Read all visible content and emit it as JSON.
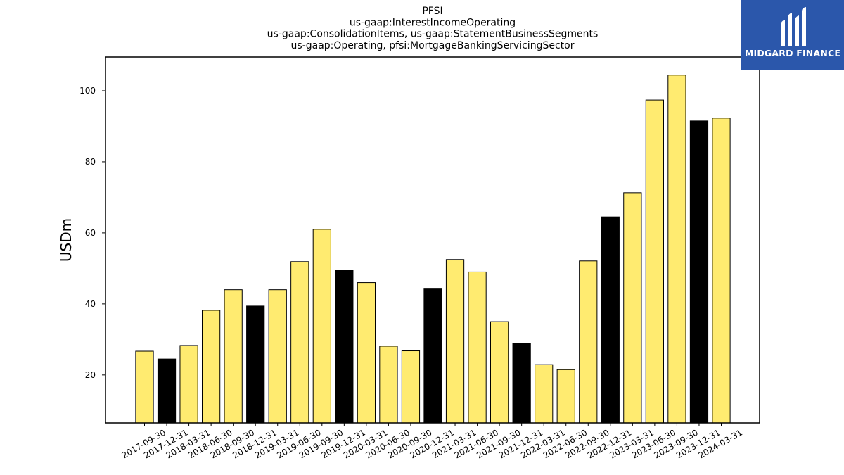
{
  "brand": {
    "name": "MIDGARD FINANCE",
    "bg_color": "#2b57ab"
  },
  "chart_data": {
    "type": "bar",
    "title_lines": [
      "PFSI",
      "us-gaap:InterestIncomeOperating",
      "us-gaap:ConsolidationItems, us-gaap:StatementBusinessSegments",
      "us-gaap:Operating, pfsi:MortgageBankingServicingSector"
    ],
    "xlabel": "",
    "ylabel": "USDm",
    "ylim": [
      6.5,
      109.5
    ],
    "yticks": [
      20,
      40,
      60,
      80,
      100
    ],
    "grid": false,
    "categories": [
      "2017-09-30",
      "2017-12-31",
      "2018-03-31",
      "2018-06-30",
      "2018-09-30",
      "2018-12-31",
      "2019-03-31",
      "2019-06-30",
      "2019-09-30",
      "2019-12-31",
      "2020-03-31",
      "2020-06-30",
      "2020-09-30",
      "2020-12-31",
      "2021-03-31",
      "2021-06-30",
      "2021-09-30",
      "2021-12-31",
      "2022-03-31",
      "2022-06-30",
      "2022-09-30",
      "2022-12-31",
      "2023-03-31",
      "2023-06-30",
      "2023-09-30",
      "2023-12-31",
      "2024-03-31"
    ],
    "values": [
      26.7,
      24.5,
      28.3,
      38.2,
      44.0,
      39.4,
      44.0,
      51.9,
      61.0,
      49.4,
      46.0,
      28.1,
      26.8,
      44.4,
      52.5,
      49.0,
      35.0,
      28.8,
      22.9,
      21.5,
      52.1,
      64.5,
      71.3,
      97.4,
      104.4,
      91.5,
      92.3
    ],
    "colors": {
      "quarter": "#ffeb70",
      "year_end": "#000000",
      "edge": "#000000"
    },
    "year_end_quarters": [
      "2017-12-31",
      "2018-12-31",
      "2019-12-31",
      "2020-12-31",
      "2021-12-31",
      "2022-12-31",
      "2023-12-31"
    ]
  }
}
